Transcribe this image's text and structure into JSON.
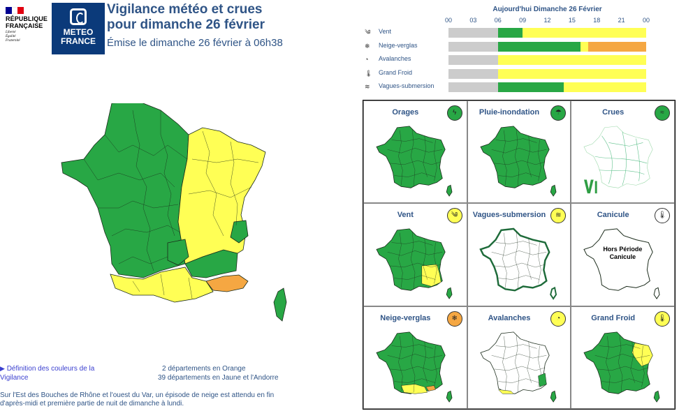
{
  "header": {
    "republique": {
      "line1": "RÉPUBLIQUE",
      "line2": "FRANÇAISE",
      "motto": [
        "Liberté",
        "Égalité",
        "Fraternité"
      ],
      "flag_colors": [
        "#000091",
        "#ffffff",
        "#e1000f"
      ]
    },
    "meteo_logo": {
      "line1": "METEO",
      "line2": "FRANCE",
      "color": "#0b3a7a"
    },
    "title_line1": "Vigilance météo et crues",
    "title_line2": "pour dimanche 26 février",
    "emission": "Émise le dimanche 26 février à 06h38"
  },
  "timeline": {
    "title": "Aujourd'hui Dimanche 26 Février",
    "hours": [
      "00",
      "03",
      "06",
      "09",
      "12",
      "15",
      "18",
      "21",
      "00"
    ],
    "rows": [
      {
        "label": "Vent",
        "icon": "wind-icon",
        "glyph": "༄",
        "segments": [
          {
            "color": "#cccccc",
            "hours": 6
          },
          {
            "color": "#28a745",
            "hours": 3
          },
          {
            "color": "#ffff55",
            "hours": 15
          }
        ]
      },
      {
        "label": "Neige-verglas",
        "icon": "snow-icon",
        "glyph": "❄",
        "segments": [
          {
            "color": "#cccccc",
            "hours": 6
          },
          {
            "color": "#28a745",
            "hours": 10
          },
          {
            "color": "#ffff55",
            "hours": 1
          },
          {
            "color": "#f5a742",
            "hours": 7
          }
        ]
      },
      {
        "label": "Avalanches",
        "icon": "avalanche-icon",
        "glyph": "◔",
        "segments": [
          {
            "color": "#cccccc",
            "hours": 6
          },
          {
            "color": "#ffff55",
            "hours": 18
          }
        ]
      },
      {
        "label": "Grand Froid",
        "icon": "thermometer-icon",
        "glyph": "🌡",
        "segments": [
          {
            "color": "#cccccc",
            "hours": 6
          },
          {
            "color": "#ffff55",
            "hours": 18
          }
        ]
      },
      {
        "label": "Vagues-submersion",
        "icon": "waves-icon",
        "glyph": "≋",
        "segments": [
          {
            "color": "#cccccc",
            "hours": 6
          },
          {
            "color": "#28a745",
            "hours": 8
          },
          {
            "color": "#ffff55",
            "hours": 10
          }
        ]
      }
    ]
  },
  "summary": {
    "definition_link": "Définition des couleurs de la Vigilance",
    "orange_count": "2 départements en Orange",
    "yellow_count": "39 départements en Jaune et l'Andorre",
    "comment": "Sur l'Est des Bouches de Rhône et l'ouest du Var, un épisode de neige est attendu en fin d'après-midi et première partie de nuit de dimanche à lundi."
  },
  "colors": {
    "green": "#28a745",
    "yellow": "#ffff55",
    "orange": "#f5a742",
    "title": "#2f5486"
  },
  "grid": [
    {
      "title": "Orages",
      "icon": "storm-icon",
      "glyph": "ϟ",
      "badge": "#28a745",
      "map": "green"
    },
    {
      "title": "Pluie-inondation",
      "icon": "rain-flood-icon",
      "glyph": "☂",
      "badge": "#28a745",
      "map": "green"
    },
    {
      "title": "Crues",
      "icon": "flood-icon",
      "glyph": "≈",
      "badge": "#28a745",
      "map": "rivers"
    },
    {
      "title": "Vent",
      "icon": "wind-icon",
      "glyph": "༄",
      "badge": "#ffff55",
      "map": "wind"
    },
    {
      "title": "Vagues-submersion",
      "icon": "waves-icon",
      "glyph": "≋",
      "badge": "#ffff55",
      "map": "white-coast"
    },
    {
      "title": "Canicule",
      "icon": "thermometer-icon",
      "glyph": "🌡",
      "badge": "#ffffff",
      "map": "outline",
      "note": "Hors Période Canicule"
    },
    {
      "title": "Neige-verglas",
      "icon": "snow-icon",
      "glyph": "❄",
      "badge": "#f5a742",
      "map": "snow"
    },
    {
      "title": "Avalanches",
      "icon": "avalanche-icon",
      "glyph": "◔",
      "badge": "#ffff55",
      "map": "white-mountain"
    },
    {
      "title": "Grand Froid",
      "icon": "thermometer-icon",
      "glyph": "🌡",
      "badge": "#ffff55",
      "map": "cold"
    }
  ]
}
